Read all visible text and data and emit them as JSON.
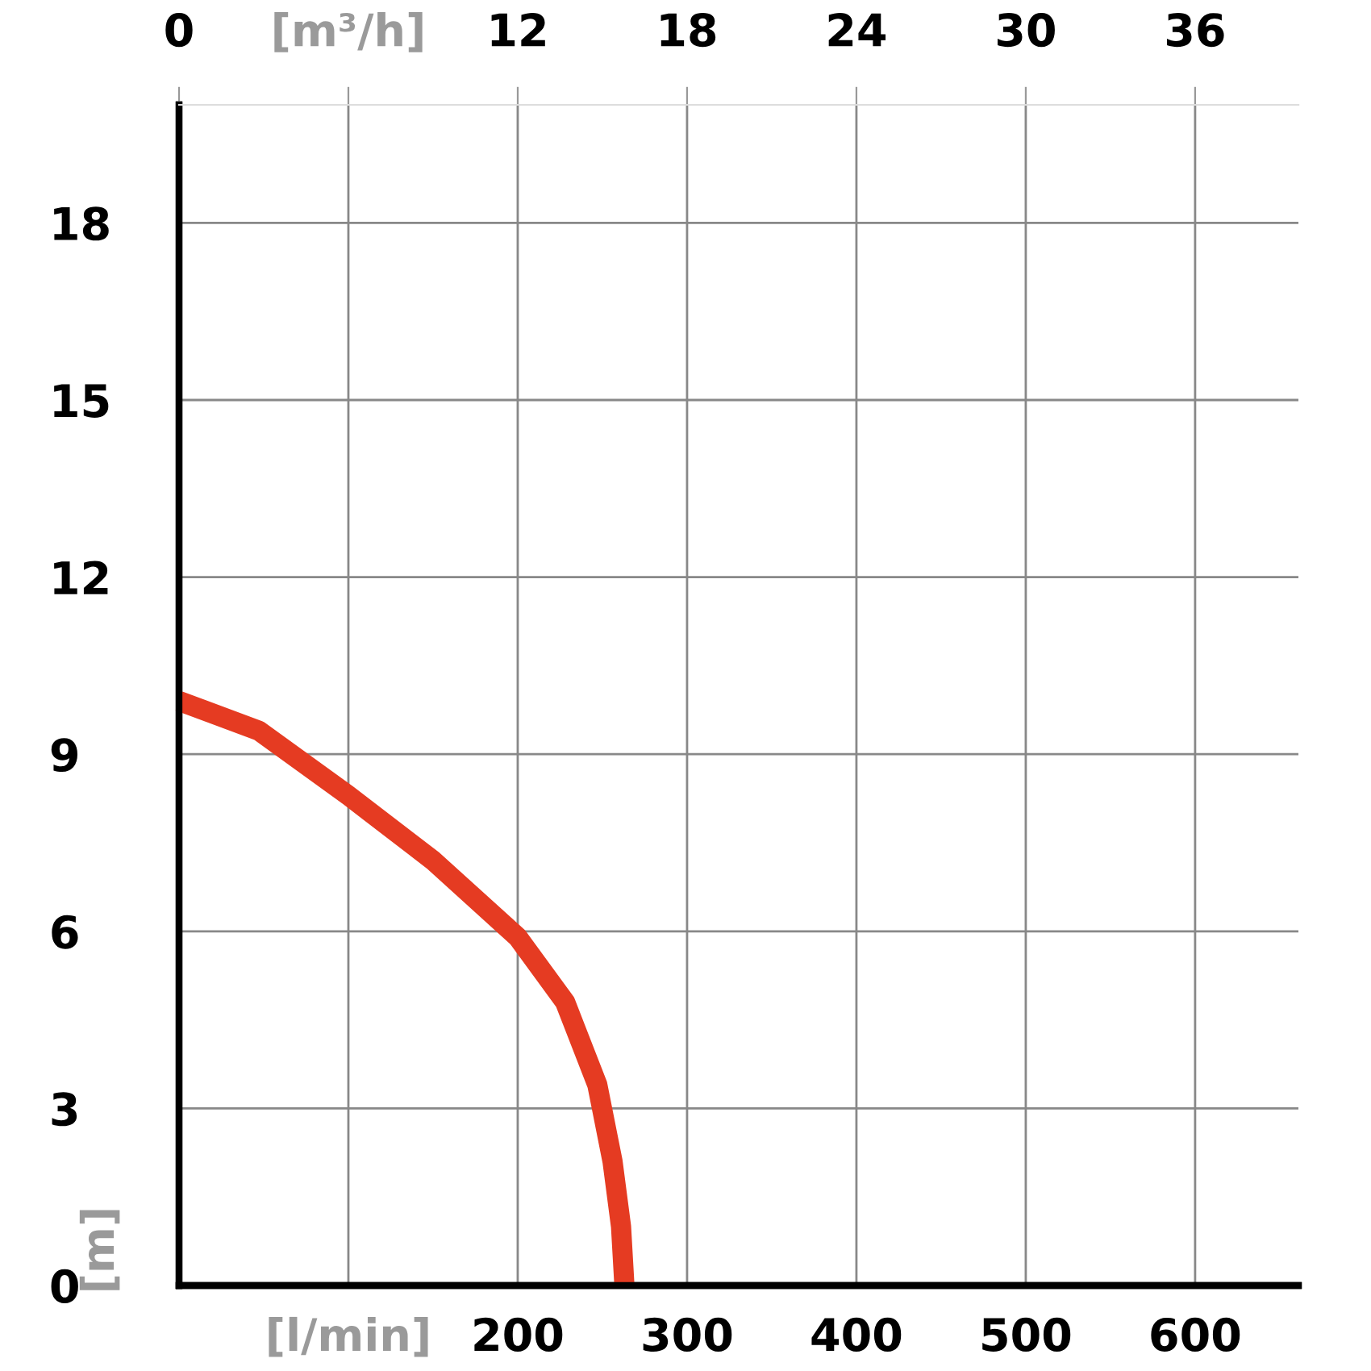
{
  "chart_data": {
    "type": "line",
    "ylabel": "[m]",
    "x": [
      0,
      47,
      100,
      150,
      200,
      228,
      247,
      256,
      261,
      263
    ],
    "series": [
      {
        "color": "#e53b22",
        "values": [
          9.9,
          9.4,
          8.3,
          7.2,
          5.9,
          4.8,
          3.4,
          2.1,
          1,
          0
        ]
      }
    ],
    "xlim": [
      0,
      661
    ],
    "xticks": [
      {
        "value": 0,
        "label": null
      },
      {
        "value": 100,
        "label": "[l/min]"
      },
      200,
      300,
      400,
      500,
      600
    ],
    "x2lim": [
      0,
      39.66
    ],
    "x2ticks": [
      0,
      {
        "value": 6,
        "label": "[m³/h]"
      },
      12,
      18,
      24,
      30,
      36
    ],
    "ylim": [
      0,
      20
    ],
    "yticks": [
      0,
      3,
      6,
      9,
      12,
      15,
      18
    ],
    "grid": true,
    "marker": "none",
    "line_style": "solid"
  }
}
